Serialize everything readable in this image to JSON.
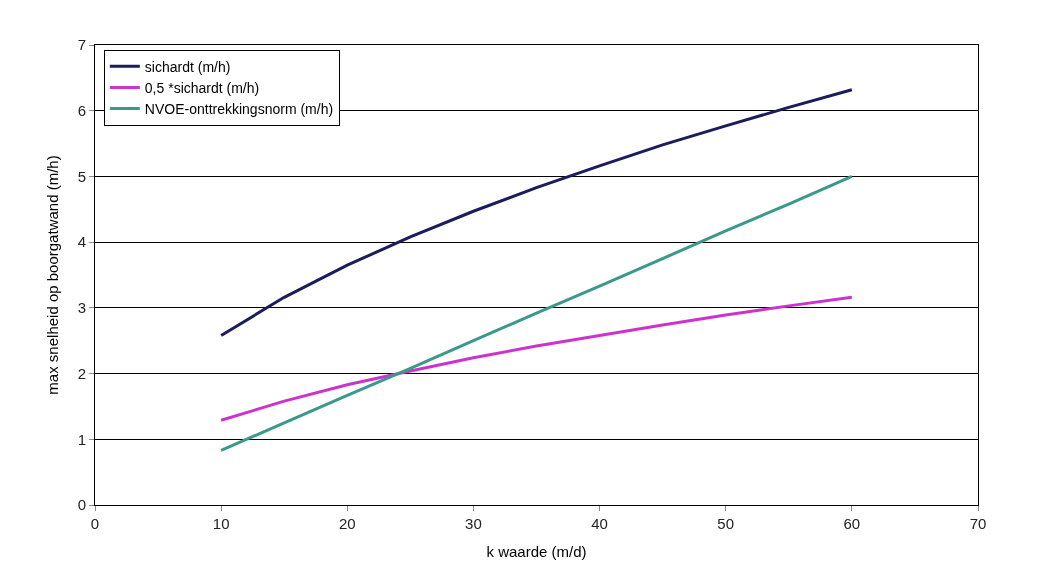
{
  "chart_data": {
    "type": "line",
    "xlabel": "k waarde (m/d)",
    "ylabel": "max snelheid op boorgatwand (m/h)",
    "x": [
      10,
      15,
      20,
      25,
      30,
      35,
      40,
      45,
      50,
      55,
      60
    ],
    "series": [
      {
        "name": "sichardt (m/h)",
        "color": "#1c1c5c",
        "values": [
          2.58,
          3.16,
          3.65,
          4.08,
          4.47,
          4.83,
          5.16,
          5.48,
          5.77,
          6.05,
          6.32
        ]
      },
      {
        "name": "0,5 *sichardt (m/h)",
        "color": "#cc33cc",
        "values": [
          1.29,
          1.58,
          1.83,
          2.04,
          2.24,
          2.42,
          2.58,
          2.74,
          2.89,
          3.03,
          3.16
        ]
      },
      {
        "name": "NVOE-onttrekkingsnorm (m/h)",
        "color": "#3a9a8a",
        "values": [
          0.83,
          1.25,
          1.67,
          2.08,
          2.5,
          2.92,
          3.33,
          3.75,
          4.17,
          4.58,
          5.0
        ]
      }
    ],
    "xlim": [
      0,
      70
    ],
    "xticks": [
      0,
      10,
      20,
      30,
      40,
      50,
      60,
      70
    ],
    "ylim": [
      0,
      7
    ],
    "yticks": [
      0,
      1,
      2,
      3,
      4,
      5,
      6,
      7
    ],
    "grid": "y",
    "legend": "top left",
    "marker": "none",
    "line_style": "solid"
  }
}
